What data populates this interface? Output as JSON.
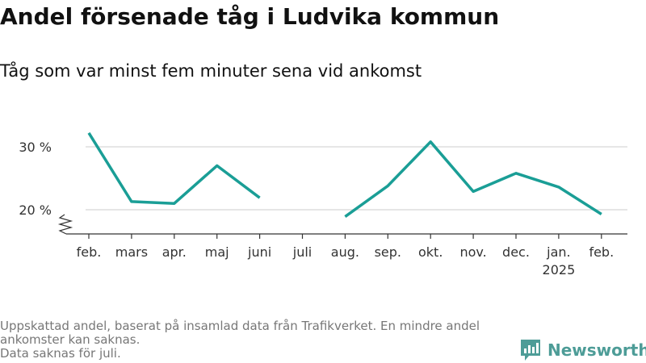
{
  "chart_data": {
    "type": "line",
    "title": "Andel försenade tåg i Ludvika kommun",
    "subtitle": "Tåg som var minst fem minuter sena vid ankomst",
    "categories": [
      "feb.",
      "mars",
      "apr.",
      "maj",
      "juni",
      "juli",
      "aug.",
      "sep.",
      "okt.",
      "nov.",
      "dec.",
      "jan.",
      "feb."
    ],
    "year_labels": [
      "",
      "",
      "",
      "",
      "",
      "",
      "",
      "",
      "",
      "",
      "",
      "2025",
      ""
    ],
    "series": [
      {
        "values": [
          32.2,
          21.3,
          21.0,
          27.0,
          21.9,
          null,
          18.9,
          23.8,
          30.8,
          22.9,
          25.8,
          23.6,
          19.3
        ]
      }
    ],
    "y_ticks": [
      20,
      30
    ],
    "y_tick_labels": [
      "20 %",
      "30 %"
    ],
    "ylim": [
      16,
      34
    ],
    "axis_break": true,
    "grid": true,
    "line_color": "#1a9e96",
    "grid_color": "#dddddd"
  },
  "footnote": {
    "line1": "Uppskattad andel, baserat på insamlad data från Trafikverket. En mindre andel",
    "line2": "ankomster kan saknas.",
    "line3": "Data saknas för juli."
  },
  "brand": {
    "name": "Newsworthy",
    "icon": "newsworthy-logo-icon",
    "color": "#4d9c97"
  }
}
